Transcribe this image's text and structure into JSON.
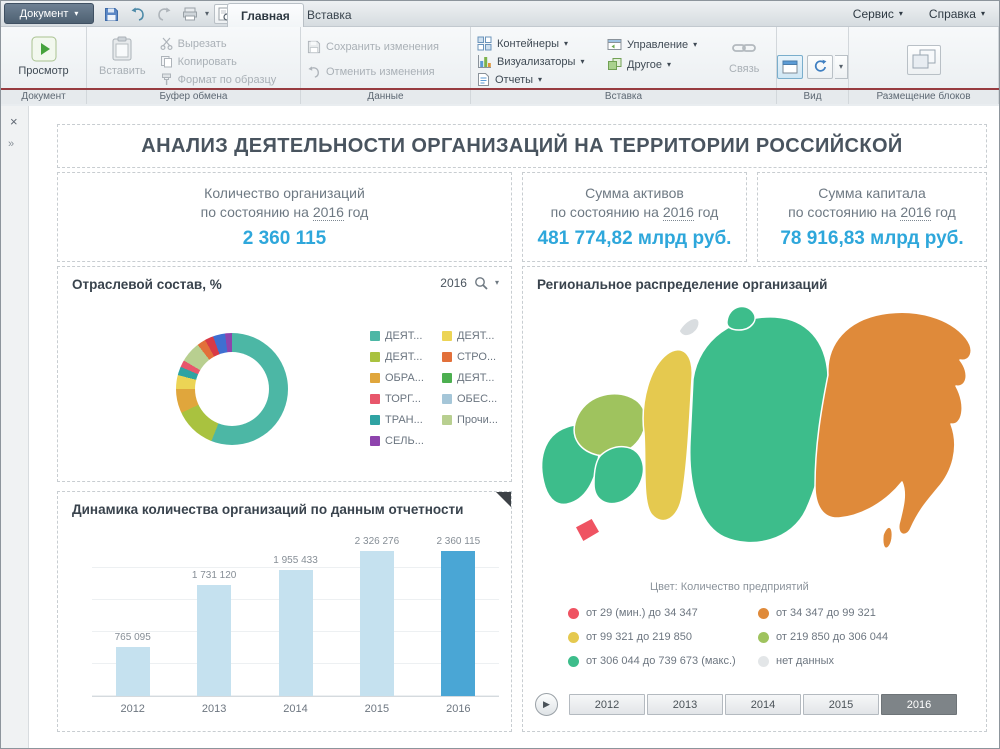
{
  "titlebar": {
    "app_button": "Документ",
    "tabs": [
      "Главная",
      "Вставка"
    ],
    "active_tab": "Главная",
    "menus": [
      "Сервис",
      "Справка"
    ]
  },
  "sidebar": {
    "close": "×",
    "expand": "»"
  },
  "ribbon": {
    "groups": {
      "document": {
        "label": "Документ",
        "preview": "Просмотр"
      },
      "clipboard": {
        "label": "Буфер обмена",
        "paste": "Вставить",
        "cut": "Вырезать",
        "copy": "Копировать",
        "format_painter": "Формат по образцу"
      },
      "data": {
        "label": "Данные",
        "save_changes": "Сохранить изменения",
        "cancel_changes": "Отменить изменения"
      },
      "insert": {
        "label": "Вставка",
        "containers": "Контейнеры",
        "visualizers": "Визуализаторы",
        "reports": "Отчеты",
        "management": "Управление",
        "other": "Другое",
        "link": "Связь"
      },
      "view": {
        "label": "Вид"
      },
      "layout": {
        "label": "Размещение блоков"
      }
    }
  },
  "dashboard": {
    "title": "АНАЛИЗ ДЕЯТЕЛЬНОСТИ ОРГАНИЗАЦИЙ НА ТЕРРИТОРИИ РОССИЙСКОЙ",
    "kpis": [
      {
        "title": "Количество организаций",
        "period_prefix": "по состоянию на",
        "year": "2016",
        "period_suffix": "год",
        "value": "2 360 115"
      },
      {
        "title": "Сумма активов",
        "period_prefix": "по состоянию на",
        "year": "2016",
        "period_suffix": "год",
        "value": "481 774,82 млрд руб."
      },
      {
        "title": "Сумма капитала",
        "period_prefix": "по состоянию на",
        "year": "2016",
        "period_suffix": "год",
        "value": "78 916,83 млрд руб."
      }
    ]
  },
  "chart_data": [
    {
      "type": "pie",
      "variant": "donut",
      "title": "Отраслевой состав, %",
      "year_filter": "2016",
      "legend": [
        {
          "label": "ДЕЯТ...",
          "color": "#4cb7a5"
        },
        {
          "label": "ДЕЯТ...",
          "color": "#a9c23f"
        },
        {
          "label": "ОБРА...",
          "color": "#e0a63c"
        },
        {
          "label": "ТОРГ...",
          "color": "#e8566b"
        },
        {
          "label": "ТРАН...",
          "color": "#2fa3a3"
        },
        {
          "label": "СЕЛЬ...",
          "color": "#8e44ad"
        },
        {
          "label": "ДЕЯТ...",
          "color": "#ecd455"
        },
        {
          "label": "СТРО...",
          "color": "#e2703a"
        },
        {
          "label": "ДЕЯТ...",
          "color": "#4caf50"
        },
        {
          "label": "ОБЕС...",
          "color": "#a5c6d8"
        },
        {
          "label": "Прочи...",
          "color": "#b8cf90"
        }
      ],
      "segments_pct": [
        {
          "color": "#4cb7a5",
          "value": 56
        },
        {
          "color": "#a9c23f",
          "value": 12
        },
        {
          "color": "#e0a63c",
          "value": 7
        },
        {
          "color": "#ecd455",
          "value": 4
        },
        {
          "color": "#2fa3a3",
          "value": 2.5
        },
        {
          "color": "#e8566b",
          "value": 2
        },
        {
          "color": "#b8cf90",
          "value": 6
        },
        {
          "color": "#e2703a",
          "value": 2.5
        },
        {
          "color": "#d93a46",
          "value": 2.5
        },
        {
          "color": "#3f6fd1",
          "value": 3.5
        },
        {
          "color": "#8e44ad",
          "value": 2
        }
      ]
    },
    {
      "type": "bar",
      "title": "Динамика количества организаций по данным отчетности",
      "categories": [
        "2012",
        "2013",
        "2014",
        "2015",
        "2016"
      ],
      "values": [
        765095,
        1731120,
        1955433,
        2326276,
        2360115
      ],
      "value_labels": [
        "765 095",
        "1 731 120",
        "1 955 433",
        "2 326 276",
        "2 360 115"
      ],
      "bar_color": "#c5e1ef",
      "highlight_color": "#4aa6d5",
      "highlight_index": 4,
      "ylim": [
        0,
        2500000
      ],
      "grid": true
    },
    {
      "type": "map",
      "title": "Региональное распределение организаций",
      "caption": "Цвет: Количество предприятий",
      "legend": [
        {
          "color": "#ef5362",
          "label": "от 29 (мин.) до 34 347"
        },
        {
          "color": "#df8a3a",
          "label": "от 34 347 до 99 321"
        },
        {
          "color": "#e5c94f",
          "label": "от 99 321 до 219 850"
        },
        {
          "color": "#9fc35e",
          "label": "от 219 850 до 306 044"
        },
        {
          "color": "#3dbd8b",
          "label": "от 306 044 до 739 673 (макс.)"
        },
        {
          "color": "#e3e6e8",
          "label": "нет данных"
        }
      ],
      "regions": [
        {
          "name": "european-west",
          "color": "#3dbd8b"
        },
        {
          "name": "european-northwest",
          "color": "#9fc35e"
        },
        {
          "name": "european-center",
          "color": "#3dbd8b"
        },
        {
          "name": "south-min",
          "color": "#ef5362"
        },
        {
          "name": "ural",
          "color": "#e5c94f"
        },
        {
          "name": "siberia",
          "color": "#3dbd8b"
        },
        {
          "name": "taymyr",
          "color": "#3dbd8b"
        },
        {
          "name": "far-east",
          "color": "#df8a3a"
        },
        {
          "name": "sakhalin",
          "color": "#df8a3a"
        },
        {
          "name": "arctic-islands",
          "color": "#d9dde0"
        }
      ],
      "timeline": {
        "years": [
          "2012",
          "2013",
          "2014",
          "2015",
          "2016"
        ],
        "selected": "2016"
      }
    }
  ]
}
